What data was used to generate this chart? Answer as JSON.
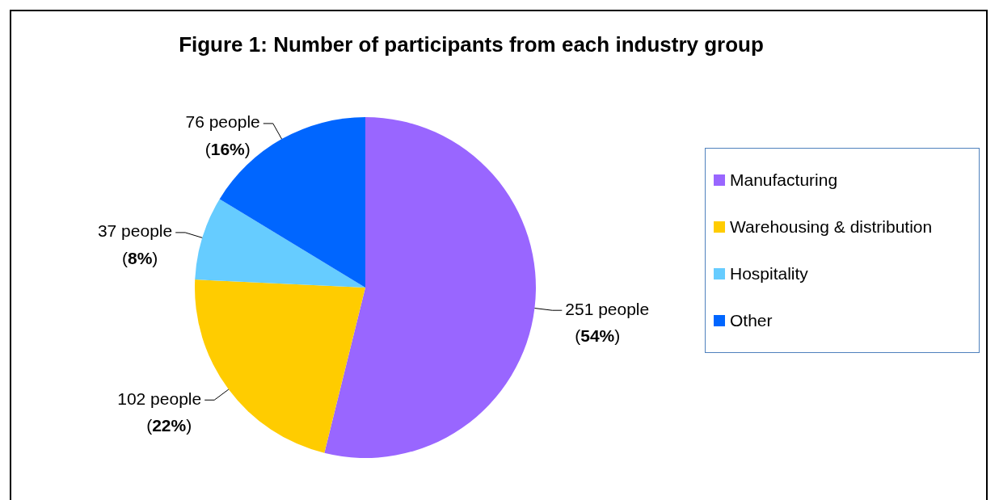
{
  "chart_data": {
    "type": "pie",
    "title": "Figure 1: Number of participants from each industry group",
    "categories": [
      "Manufacturing",
      "Warehousing & distribution",
      "Hospitality",
      "Other"
    ],
    "values": [
      251,
      102,
      37,
      76
    ],
    "colors": [
      "#9966ff",
      "#ffcc00",
      "#66ccff",
      "#0066ff"
    ],
    "value_labels": [
      "251 people\n(54%)",
      "102 people\n(22%)",
      "37 people\n(8%)",
      "76 people\n(16%)"
    ],
    "legend": "right"
  }
}
